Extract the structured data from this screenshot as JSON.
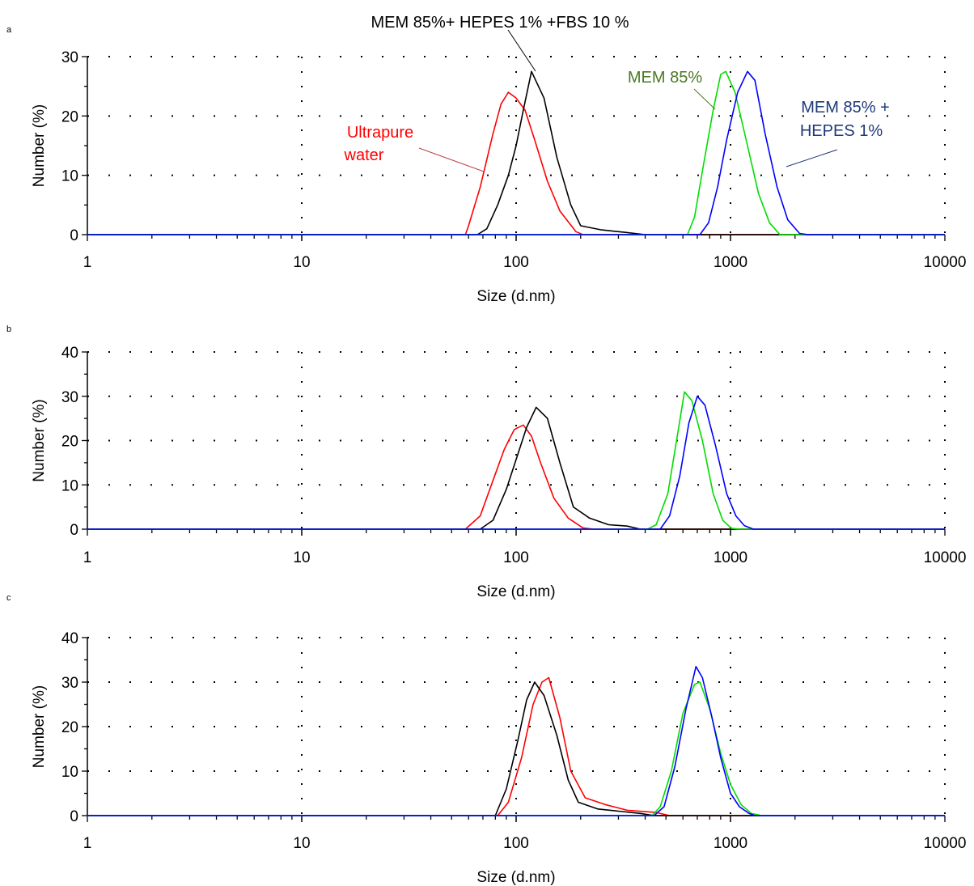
{
  "colors": {
    "water": "#ff0000",
    "fbs": "#000000",
    "mem": "#00dd00",
    "hepes": "#0000ff",
    "mem_label": "#4a7a22",
    "hepes_label": "#1f3a78"
  },
  "chart_data": [
    {
      "type": "line",
      "panel_label": "a",
      "title": "MEM 85%+ HEPES 1% +FBS 10 %",
      "xlabel": "Size (d.nm)",
      "ylabel": "Number (%)",
      "x_scale": "log",
      "xlim": [
        1,
        10000
      ],
      "ylim": [
        0,
        30
      ],
      "x_ticks": [
        "1",
        "10",
        "100",
        "1000",
        "10000"
      ],
      "y_ticks": [
        "0",
        "10",
        "20",
        "30"
      ],
      "grid": true,
      "annotations": [
        "Ultrapure",
        "water",
        "MEM 85%",
        "MEM 85% +",
        "HEPES 1%"
      ],
      "series": [
        {
          "key": "water",
          "points": [
            [
              1,
              0
            ],
            [
              58,
              0
            ],
            [
              60,
              1.5
            ],
            [
              68,
              8
            ],
            [
              78,
              17
            ],
            [
              85,
              22
            ],
            [
              92,
              24
            ],
            [
              100,
              23
            ],
            [
              110,
              21
            ],
            [
              122,
              16
            ],
            [
              140,
              9
            ],
            [
              160,
              4
            ],
            [
              190,
              0.5
            ],
            [
              205,
              0
            ],
            [
              10000,
              0
            ]
          ]
        },
        {
          "key": "fbs",
          "points": [
            [
              1,
              0
            ],
            [
              66,
              0
            ],
            [
              73,
              1
            ],
            [
              82,
              5
            ],
            [
              92,
              10
            ],
            [
              100,
              15
            ],
            [
              108,
              21
            ],
            [
              118,
              27.5
            ],
            [
              135,
              23
            ],
            [
              155,
              13
            ],
            [
              180,
              5
            ],
            [
              200,
              1.5
            ],
            [
              250,
              0.8
            ],
            [
              320,
              0.4
            ],
            [
              400,
              0
            ],
            [
              10000,
              0
            ]
          ]
        },
        {
          "key": "mem",
          "points": [
            [
              1,
              0
            ],
            [
              630,
              0
            ],
            [
              680,
              3
            ],
            [
              750,
              12
            ],
            [
              830,
              21
            ],
            [
              900,
              27
            ],
            [
              950,
              27.5
            ],
            [
              1050,
              24
            ],
            [
              1200,
              15
            ],
            [
              1350,
              7
            ],
            [
              1520,
              2
            ],
            [
              1700,
              0
            ],
            [
              10000,
              0
            ]
          ]
        },
        {
          "key": "hepes",
          "points": [
            [
              1,
              0
            ],
            [
              720,
              0
            ],
            [
              790,
              2
            ],
            [
              870,
              8
            ],
            [
              960,
              16
            ],
            [
              1080,
              24
            ],
            [
              1200,
              27.5
            ],
            [
              1300,
              26
            ],
            [
              1450,
              17
            ],
            [
              1650,
              8
            ],
            [
              1850,
              2.5
            ],
            [
              2100,
              0.2
            ],
            [
              2300,
              0
            ],
            [
              10000,
              0
            ]
          ]
        }
      ]
    },
    {
      "type": "line",
      "panel_label": "b",
      "xlabel": "Size (d.nm)",
      "ylabel": "Number (%)",
      "x_scale": "log",
      "xlim": [
        1,
        10000
      ],
      "ylim": [
        0,
        40
      ],
      "x_ticks": [
        "1",
        "10",
        "100",
        "1000",
        "10000"
      ],
      "y_ticks": [
        "0",
        "10",
        "20",
        "30",
        "40"
      ],
      "grid": true,
      "series": [
        {
          "key": "water",
          "points": [
            [
              1,
              0
            ],
            [
              58,
              0
            ],
            [
              68,
              3
            ],
            [
              78,
              11
            ],
            [
              88,
              18
            ],
            [
              98,
              22.5
            ],
            [
              108,
              23.5
            ],
            [
              118,
              21
            ],
            [
              130,
              15
            ],
            [
              150,
              7
            ],
            [
              175,
              2.5
            ],
            [
              205,
              0.3
            ],
            [
              230,
              0
            ],
            [
              10000,
              0
            ]
          ]
        },
        {
          "key": "fbs",
          "points": [
            [
              1,
              0
            ],
            [
              68,
              0
            ],
            [
              78,
              2
            ],
            [
              90,
              9
            ],
            [
              102,
              17
            ],
            [
              112,
              23
            ],
            [
              124,
              27.5
            ],
            [
              140,
              25
            ],
            [
              160,
              15
            ],
            [
              185,
              5
            ],
            [
              220,
              2.5
            ],
            [
              270,
              1
            ],
            [
              330,
              0.7
            ],
            [
              380,
              0
            ],
            [
              10000,
              0
            ]
          ]
        },
        {
          "key": "mem",
          "points": [
            [
              1,
              0
            ],
            [
              410,
              0
            ],
            [
              450,
              1
            ],
            [
              510,
              8
            ],
            [
              560,
              20
            ],
            [
              610,
              31
            ],
            [
              660,
              29
            ],
            [
              740,
              20
            ],
            [
              830,
              8
            ],
            [
              920,
              2
            ],
            [
              1010,
              0.2
            ],
            [
              1100,
              0
            ],
            [
              10000,
              0
            ]
          ]
        },
        {
          "key": "hepes",
          "points": [
            [
              1,
              0
            ],
            [
              470,
              0
            ],
            [
              520,
              3
            ],
            [
              580,
              12
            ],
            [
              640,
              24
            ],
            [
              700,
              30
            ],
            [
              760,
              28
            ],
            [
              850,
              19
            ],
            [
              960,
              8
            ],
            [
              1060,
              3
            ],
            [
              1160,
              0.8
            ],
            [
              1280,
              0
            ],
            [
              10000,
              0
            ]
          ]
        }
      ]
    },
    {
      "type": "line",
      "panel_label": "c",
      "xlabel": "Size (d.nm)",
      "ylabel": "Number (%)",
      "x_scale": "log",
      "xlim": [
        1,
        10000
      ],
      "ylim": [
        0,
        40
      ],
      "x_ticks": [
        "1",
        "10",
        "100",
        "1000",
        "10000"
      ],
      "y_ticks": [
        "0",
        "10",
        "20",
        "30",
        "40"
      ],
      "grid": true,
      "series": [
        {
          "key": "water",
          "points": [
            [
              1,
              0
            ],
            [
              82,
              0
            ],
            [
              92,
              3
            ],
            [
              106,
              13
            ],
            [
              120,
              25
            ],
            [
              132,
              30
            ],
            [
              142,
              31
            ],
            [
              160,
              22
            ],
            [
              180,
              10
            ],
            [
              210,
              4
            ],
            [
              260,
              2.5
            ],
            [
              330,
              1.2
            ],
            [
              450,
              0.7
            ],
            [
              520,
              0
            ],
            [
              10000,
              0
            ]
          ]
        },
        {
          "key": "fbs",
          "points": [
            [
              1,
              0
            ],
            [
              80,
              0
            ],
            [
              90,
              6
            ],
            [
              102,
              17
            ],
            [
              112,
              26
            ],
            [
              122,
              30
            ],
            [
              135,
              27
            ],
            [
              155,
              18
            ],
            [
              175,
              8
            ],
            [
              195,
              3
            ],
            [
              240,
              1.5
            ],
            [
              300,
              1
            ],
            [
              380,
              0.5
            ],
            [
              440,
              0
            ],
            [
              10000,
              0
            ]
          ]
        },
        {
          "key": "mem",
          "points": [
            [
              1,
              0
            ],
            [
              430,
              0
            ],
            [
              470,
              2
            ],
            [
              530,
              10
            ],
            [
              600,
              23
            ],
            [
              680,
              29.5
            ],
            [
              720,
              30
            ],
            [
              800,
              24
            ],
            [
              900,
              14
            ],
            [
              1000,
              7
            ],
            [
              1120,
              2.5
            ],
            [
              1250,
              0.5
            ],
            [
              1400,
              0
            ],
            [
              10000,
              0
            ]
          ]
        },
        {
          "key": "hepes",
          "points": [
            [
              1,
              0
            ],
            [
              440,
              0
            ],
            [
              490,
              2
            ],
            [
              550,
              11
            ],
            [
              620,
              24
            ],
            [
              690,
              33.5
            ],
            [
              740,
              31
            ],
            [
              820,
              22
            ],
            [
              900,
              13
            ],
            [
              1000,
              5
            ],
            [
              1100,
              2
            ],
            [
              1220,
              0.5
            ],
            [
              1300,
              0
            ],
            [
              10000,
              0
            ]
          ]
        }
      ]
    }
  ]
}
